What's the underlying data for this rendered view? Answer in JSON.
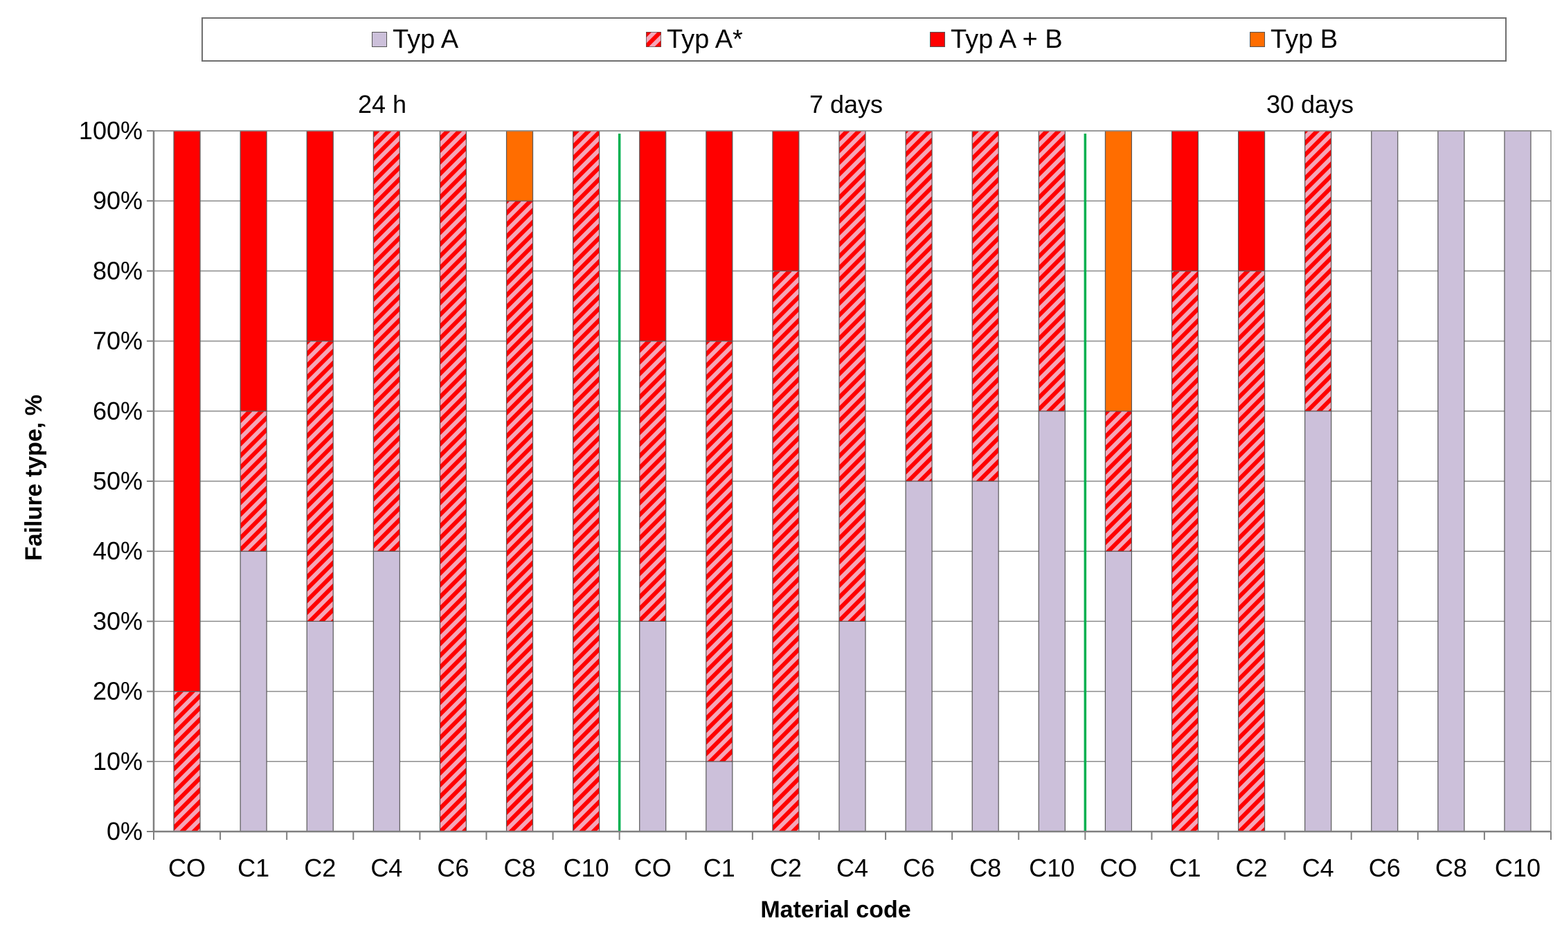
{
  "chart_data": {
    "type": "bar",
    "stacked": true,
    "title": "",
    "xlabel": "Material code",
    "ylabel": "Failure type, %",
    "ylim": [
      0,
      100
    ],
    "yticks": [
      "0%",
      "10%",
      "20%",
      "30%",
      "40%",
      "50%",
      "60%",
      "70%",
      "80%",
      "90%",
      "100%"
    ],
    "grid": true,
    "legend_position": "top",
    "groups": [
      "24 h",
      "7 days",
      "30 days"
    ],
    "categories": [
      "CO",
      "C1",
      "C2",
      "C4",
      "C6",
      "C8",
      "C10",
      "CO",
      "C1",
      "C2",
      "C4",
      "C6",
      "C8",
      "C10",
      "CO",
      "C1",
      "C2",
      "C4",
      "C6",
      "C8",
      "C10"
    ],
    "series": [
      {
        "name": "Typ A",
        "color": "#ccc0da",
        "pattern": "solid",
        "values": [
          0,
          40,
          30,
          40,
          0,
          0,
          0,
          30,
          10,
          0,
          30,
          50,
          50,
          60,
          40,
          0,
          0,
          60,
          100,
          100,
          100
        ]
      },
      {
        "name": "Typ A*",
        "color": "#ff0000",
        "pattern": "hatch",
        "values": [
          20,
          20,
          40,
          60,
          100,
          90,
          100,
          40,
          60,
          80,
          70,
          50,
          50,
          40,
          20,
          80,
          80,
          40,
          0,
          0,
          0
        ]
      },
      {
        "name": "Typ A + B",
        "color": "#ff0000",
        "pattern": "solid",
        "values": [
          80,
          40,
          30,
          0,
          0,
          0,
          0,
          30,
          30,
          20,
          0,
          0,
          0,
          0,
          0,
          20,
          20,
          0,
          0,
          0,
          0
        ]
      },
      {
        "name": "Typ B",
        "color": "#ff6d00",
        "pattern": "solid",
        "values": [
          0,
          0,
          0,
          0,
          0,
          10,
          0,
          0,
          0,
          0,
          0,
          0,
          0,
          0,
          40,
          0,
          0,
          0,
          0,
          0,
          0
        ]
      }
    ],
    "separator_color": "#00b050"
  }
}
